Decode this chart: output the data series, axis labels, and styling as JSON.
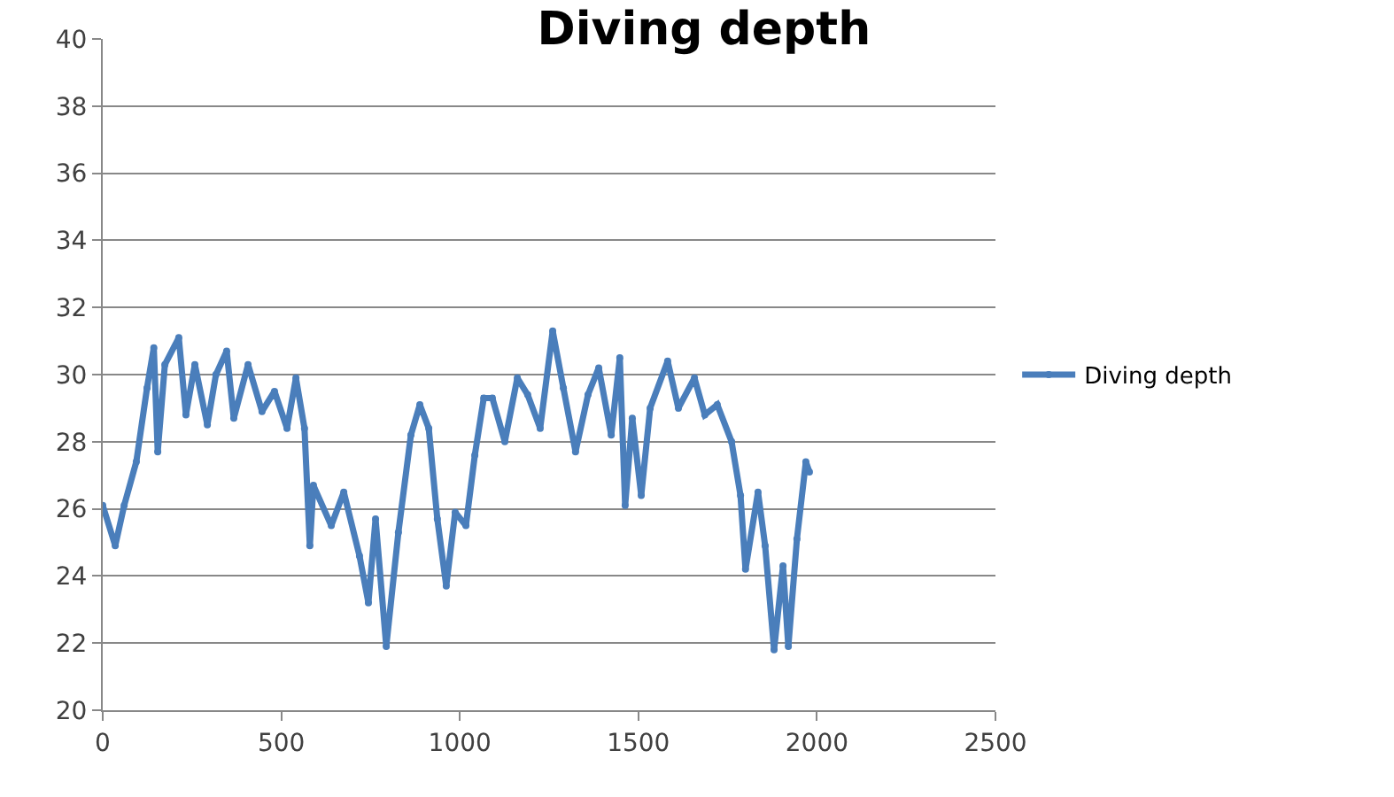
{
  "chart_data": {
    "type": "line",
    "title": "Diving depth",
    "xlim": [
      0,
      2500
    ],
    "xticks": [
      0,
      500,
      1000,
      1500,
      2000,
      2500
    ],
    "ylim": [
      20,
      40
    ],
    "yticks": [
      20,
      22,
      24,
      26,
      28,
      30,
      32,
      34,
      36,
      38,
      40
    ],
    "grid": "y",
    "legend": "right",
    "marker": "circle",
    "line_style": "solid",
    "series": [
      {
        "name": "Diving depth",
        "color": "#4a7ebb",
        "x": [
          0,
          35,
          60,
          94,
          124,
          143,
          154,
          174,
          213,
          233,
          258,
          293,
          317,
          347,
          367,
          407,
          446,
          481,
          516,
          541,
          565,
          580,
          590,
          640,
          675,
          719,
          744,
          764,
          794,
          828,
          863,
          888,
          913,
          937,
          962,
          987,
          1017,
          1042,
          1067,
          1091,
          1126,
          1161,
          1190,
          1225,
          1260,
          1290,
          1324,
          1359,
          1389,
          1424,
          1448,
          1463,
          1483,
          1508,
          1533,
          1582,
          1612,
          1657,
          1686,
          1721,
          1761,
          1786,
          1800,
          1835,
          1855,
          1880,
          1905,
          1920,
          1944,
          1969,
          1979
        ],
        "values": [
          26.1,
          24.9,
          26.1,
          27.4,
          29.6,
          30.8,
          27.7,
          30.3,
          31.1,
          28.8,
          30.3,
          28.5,
          30,
          30.7,
          28.7,
          30.3,
          28.9,
          29.5,
          28.4,
          29.9,
          28.4,
          24.9,
          26.7,
          25.5,
          26.5,
          24.6,
          23.2,
          25.7,
          21.9,
          25.3,
          28.2,
          29.1,
          28.4,
          25.7,
          23.7,
          25.9,
          25.5,
          27.6,
          29.3,
          29.3,
          28,
          29.9,
          29.4,
          28.4,
          31.3,
          29.6,
          27.7,
          29.4,
          30.2,
          28.2,
          30.5,
          26.1,
          28.7,
          26.4,
          29,
          30.4,
          29,
          29.9,
          28.8,
          29.1,
          28,
          26.4,
          24.2,
          26.5,
          24.9,
          21.8,
          24.3,
          21.9,
          25.1,
          27.4,
          27.1
        ]
      }
    ]
  }
}
